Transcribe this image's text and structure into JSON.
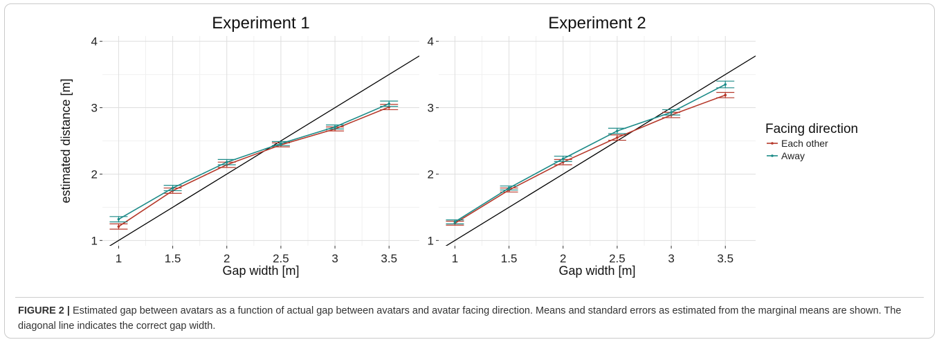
{
  "chart_data": [
    {
      "type": "line",
      "title": "Experiment 1",
      "xlabel": "Gap width [m]",
      "ylabel": "estimated distance [m]",
      "x": [
        1,
        1.5,
        2,
        2.5,
        3,
        3.5
      ],
      "x_tick_labels": [
        "1",
        "1.5",
        "2",
        "2.5",
        "3",
        "3.5"
      ],
      "y_ticks": [
        1,
        2,
        3,
        4
      ],
      "y_tick_labels": [
        "1",
        "2",
        "3",
        "4"
      ],
      "xlim": [
        0.85,
        3.78
      ],
      "ylim": [
        0.92,
        4.08
      ],
      "grid": true,
      "reference_line": [
        [
          0.85,
          0.85
        ],
        [
          3.78,
          3.78
        ]
      ],
      "series": [
        {
          "name": "Each other",
          "color": "#b5382a",
          "y": [
            1.21,
            1.75,
            2.14,
            2.44,
            2.68,
            3.01
          ],
          "se": [
            0.04,
            0.04,
            0.04,
            0.03,
            0.03,
            0.04
          ]
        },
        {
          "name": "Away",
          "color": "#1b8a87",
          "y": [
            1.32,
            1.79,
            2.18,
            2.46,
            2.71,
            3.06
          ],
          "se": [
            0.04,
            0.04,
            0.04,
            0.03,
            0.03,
            0.04
          ]
        }
      ]
    },
    {
      "type": "line",
      "title": "Experiment 2",
      "xlabel": "Gap width [m]",
      "ylabel": "",
      "x": [
        1,
        1.5,
        2,
        2.5,
        3,
        3.5
      ],
      "x_tick_labels": [
        "1",
        "1.5",
        "2",
        "2.5",
        "3",
        "3.5"
      ],
      "y_ticks": [
        1,
        2,
        3,
        4
      ],
      "y_tick_labels": [
        "1",
        "2",
        "3",
        "4"
      ],
      "xlim": [
        0.85,
        3.78
      ],
      "ylim": [
        0.92,
        4.08
      ],
      "grid": true,
      "reference_line": [
        [
          0.85,
          0.85
        ],
        [
          3.78,
          3.78
        ]
      ],
      "series": [
        {
          "name": "Each other",
          "color": "#b5382a",
          "y": [
            1.26,
            1.76,
            2.18,
            2.55,
            2.89,
            3.19
          ],
          "se": [
            0.03,
            0.03,
            0.04,
            0.04,
            0.04,
            0.04
          ]
        },
        {
          "name": "Away",
          "color": "#1b8a87",
          "y": [
            1.28,
            1.79,
            2.23,
            2.65,
            2.93,
            3.35
          ],
          "se": [
            0.03,
            0.03,
            0.04,
            0.04,
            0.04,
            0.05
          ]
        }
      ]
    }
  ],
  "legend": {
    "title": "Facing direction",
    "placement": "right",
    "items": [
      {
        "label": "Each other",
        "color": "#b5382a"
      },
      {
        "label": "Away",
        "color": "#1b8a87"
      }
    ]
  },
  "caption": {
    "label": "FIGURE 2 |",
    "text": " Estimated gap between avatars as a function of actual gap between avatars and avatar facing direction. Means and standard errors as estimated from the marginal means are shown. The diagonal line indicates the correct gap width."
  }
}
